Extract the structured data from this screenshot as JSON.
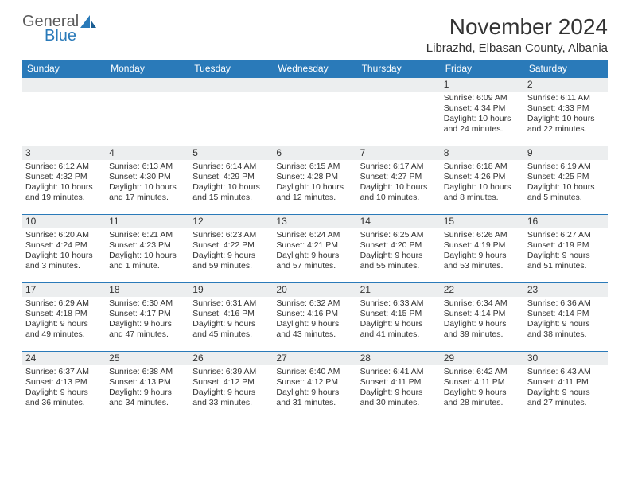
{
  "logo": {
    "general": "General",
    "blue": "Blue"
  },
  "title": "November 2024",
  "location": "Librazhd, Elbasan County, Albania",
  "colors": {
    "header_bg": "#2a7ab9",
    "header_text": "#ffffff",
    "border": "#2a7ab9",
    "daynum_bg": "#eceeef",
    "text": "#333333",
    "logo_gray": "#5a5a5a",
    "logo_blue": "#2a7ab9"
  },
  "weekdays": [
    "Sunday",
    "Monday",
    "Tuesday",
    "Wednesday",
    "Thursday",
    "Friday",
    "Saturday"
  ],
  "weeks": [
    [
      null,
      null,
      null,
      null,
      null,
      {
        "n": "1",
        "sr": "Sunrise: 6:09 AM",
        "ss": "Sunset: 4:34 PM",
        "dl1": "Daylight: 10 hours",
        "dl2": "and 24 minutes."
      },
      {
        "n": "2",
        "sr": "Sunrise: 6:11 AM",
        "ss": "Sunset: 4:33 PM",
        "dl1": "Daylight: 10 hours",
        "dl2": "and 22 minutes."
      }
    ],
    [
      {
        "n": "3",
        "sr": "Sunrise: 6:12 AM",
        "ss": "Sunset: 4:32 PM",
        "dl1": "Daylight: 10 hours",
        "dl2": "and 19 minutes."
      },
      {
        "n": "4",
        "sr": "Sunrise: 6:13 AM",
        "ss": "Sunset: 4:30 PM",
        "dl1": "Daylight: 10 hours",
        "dl2": "and 17 minutes."
      },
      {
        "n": "5",
        "sr": "Sunrise: 6:14 AM",
        "ss": "Sunset: 4:29 PM",
        "dl1": "Daylight: 10 hours",
        "dl2": "and 15 minutes."
      },
      {
        "n": "6",
        "sr": "Sunrise: 6:15 AM",
        "ss": "Sunset: 4:28 PM",
        "dl1": "Daylight: 10 hours",
        "dl2": "and 12 minutes."
      },
      {
        "n": "7",
        "sr": "Sunrise: 6:17 AM",
        "ss": "Sunset: 4:27 PM",
        "dl1": "Daylight: 10 hours",
        "dl2": "and 10 minutes."
      },
      {
        "n": "8",
        "sr": "Sunrise: 6:18 AM",
        "ss": "Sunset: 4:26 PM",
        "dl1": "Daylight: 10 hours",
        "dl2": "and 8 minutes."
      },
      {
        "n": "9",
        "sr": "Sunrise: 6:19 AM",
        "ss": "Sunset: 4:25 PM",
        "dl1": "Daylight: 10 hours",
        "dl2": "and 5 minutes."
      }
    ],
    [
      {
        "n": "10",
        "sr": "Sunrise: 6:20 AM",
        "ss": "Sunset: 4:24 PM",
        "dl1": "Daylight: 10 hours",
        "dl2": "and 3 minutes."
      },
      {
        "n": "11",
        "sr": "Sunrise: 6:21 AM",
        "ss": "Sunset: 4:23 PM",
        "dl1": "Daylight: 10 hours",
        "dl2": "and 1 minute."
      },
      {
        "n": "12",
        "sr": "Sunrise: 6:23 AM",
        "ss": "Sunset: 4:22 PM",
        "dl1": "Daylight: 9 hours",
        "dl2": "and 59 minutes."
      },
      {
        "n": "13",
        "sr": "Sunrise: 6:24 AM",
        "ss": "Sunset: 4:21 PM",
        "dl1": "Daylight: 9 hours",
        "dl2": "and 57 minutes."
      },
      {
        "n": "14",
        "sr": "Sunrise: 6:25 AM",
        "ss": "Sunset: 4:20 PM",
        "dl1": "Daylight: 9 hours",
        "dl2": "and 55 minutes."
      },
      {
        "n": "15",
        "sr": "Sunrise: 6:26 AM",
        "ss": "Sunset: 4:19 PM",
        "dl1": "Daylight: 9 hours",
        "dl2": "and 53 minutes."
      },
      {
        "n": "16",
        "sr": "Sunrise: 6:27 AM",
        "ss": "Sunset: 4:19 PM",
        "dl1": "Daylight: 9 hours",
        "dl2": "and 51 minutes."
      }
    ],
    [
      {
        "n": "17",
        "sr": "Sunrise: 6:29 AM",
        "ss": "Sunset: 4:18 PM",
        "dl1": "Daylight: 9 hours",
        "dl2": "and 49 minutes."
      },
      {
        "n": "18",
        "sr": "Sunrise: 6:30 AM",
        "ss": "Sunset: 4:17 PM",
        "dl1": "Daylight: 9 hours",
        "dl2": "and 47 minutes."
      },
      {
        "n": "19",
        "sr": "Sunrise: 6:31 AM",
        "ss": "Sunset: 4:16 PM",
        "dl1": "Daylight: 9 hours",
        "dl2": "and 45 minutes."
      },
      {
        "n": "20",
        "sr": "Sunrise: 6:32 AM",
        "ss": "Sunset: 4:16 PM",
        "dl1": "Daylight: 9 hours",
        "dl2": "and 43 minutes."
      },
      {
        "n": "21",
        "sr": "Sunrise: 6:33 AM",
        "ss": "Sunset: 4:15 PM",
        "dl1": "Daylight: 9 hours",
        "dl2": "and 41 minutes."
      },
      {
        "n": "22",
        "sr": "Sunrise: 6:34 AM",
        "ss": "Sunset: 4:14 PM",
        "dl1": "Daylight: 9 hours",
        "dl2": "and 39 minutes."
      },
      {
        "n": "23",
        "sr": "Sunrise: 6:36 AM",
        "ss": "Sunset: 4:14 PM",
        "dl1": "Daylight: 9 hours",
        "dl2": "and 38 minutes."
      }
    ],
    [
      {
        "n": "24",
        "sr": "Sunrise: 6:37 AM",
        "ss": "Sunset: 4:13 PM",
        "dl1": "Daylight: 9 hours",
        "dl2": "and 36 minutes."
      },
      {
        "n": "25",
        "sr": "Sunrise: 6:38 AM",
        "ss": "Sunset: 4:13 PM",
        "dl1": "Daylight: 9 hours",
        "dl2": "and 34 minutes."
      },
      {
        "n": "26",
        "sr": "Sunrise: 6:39 AM",
        "ss": "Sunset: 4:12 PM",
        "dl1": "Daylight: 9 hours",
        "dl2": "and 33 minutes."
      },
      {
        "n": "27",
        "sr": "Sunrise: 6:40 AM",
        "ss": "Sunset: 4:12 PM",
        "dl1": "Daylight: 9 hours",
        "dl2": "and 31 minutes."
      },
      {
        "n": "28",
        "sr": "Sunrise: 6:41 AM",
        "ss": "Sunset: 4:11 PM",
        "dl1": "Daylight: 9 hours",
        "dl2": "and 30 minutes."
      },
      {
        "n": "29",
        "sr": "Sunrise: 6:42 AM",
        "ss": "Sunset: 4:11 PM",
        "dl1": "Daylight: 9 hours",
        "dl2": "and 28 minutes."
      },
      {
        "n": "30",
        "sr": "Sunrise: 6:43 AM",
        "ss": "Sunset: 4:11 PM",
        "dl1": "Daylight: 9 hours",
        "dl2": "and 27 minutes."
      }
    ]
  ]
}
